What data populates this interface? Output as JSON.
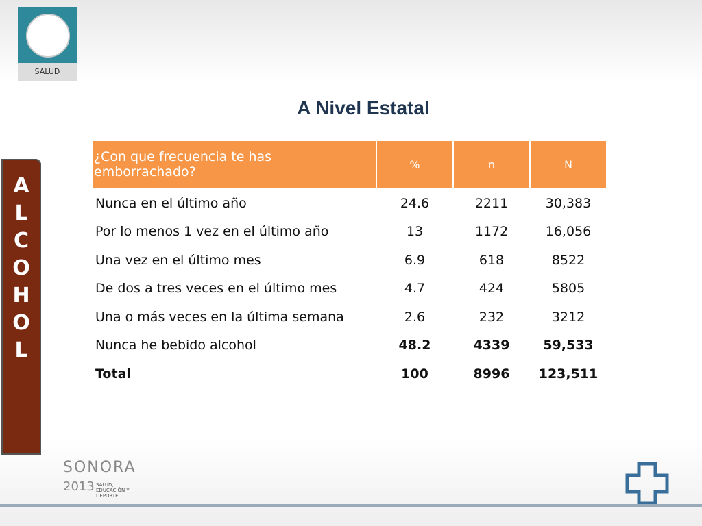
{
  "header": {
    "logo_label": "SALUD",
    "title": "A Nivel Estatal"
  },
  "sidebar": {
    "letters": [
      "A",
      "L",
      "C",
      "O",
      "H",
      "O",
      "L"
    ]
  },
  "table": {
    "columns": [
      "¿Con que frecuencia te has emborrachado?",
      "%",
      "n",
      "N"
    ],
    "rows": [
      [
        "Nunca en el último año",
        "24.6",
        "2211",
        "30,383"
      ],
      [
        "Por lo menos 1 vez en el último año",
        "13",
        "1172",
        "16,056"
      ],
      [
        "Una vez en el último mes",
        "6.9",
        "618",
        "8522"
      ],
      [
        "De dos a tres veces en el último mes",
        "4.7",
        "424",
        "5805"
      ],
      [
        "Una o más veces en la última semana",
        "2.6",
        "232",
        "3212"
      ],
      [
        "Nunca he bebido alcohol",
        "48.2",
        "4339",
        "59,533"
      ],
      [
        "Total",
        "100",
        "8996",
        "123,511"
      ]
    ]
  },
  "footer": {
    "brand": "SONORA",
    "year": "2013",
    "tagline": "SALUD, EDUCACIÓN Y DEPORTE"
  }
}
